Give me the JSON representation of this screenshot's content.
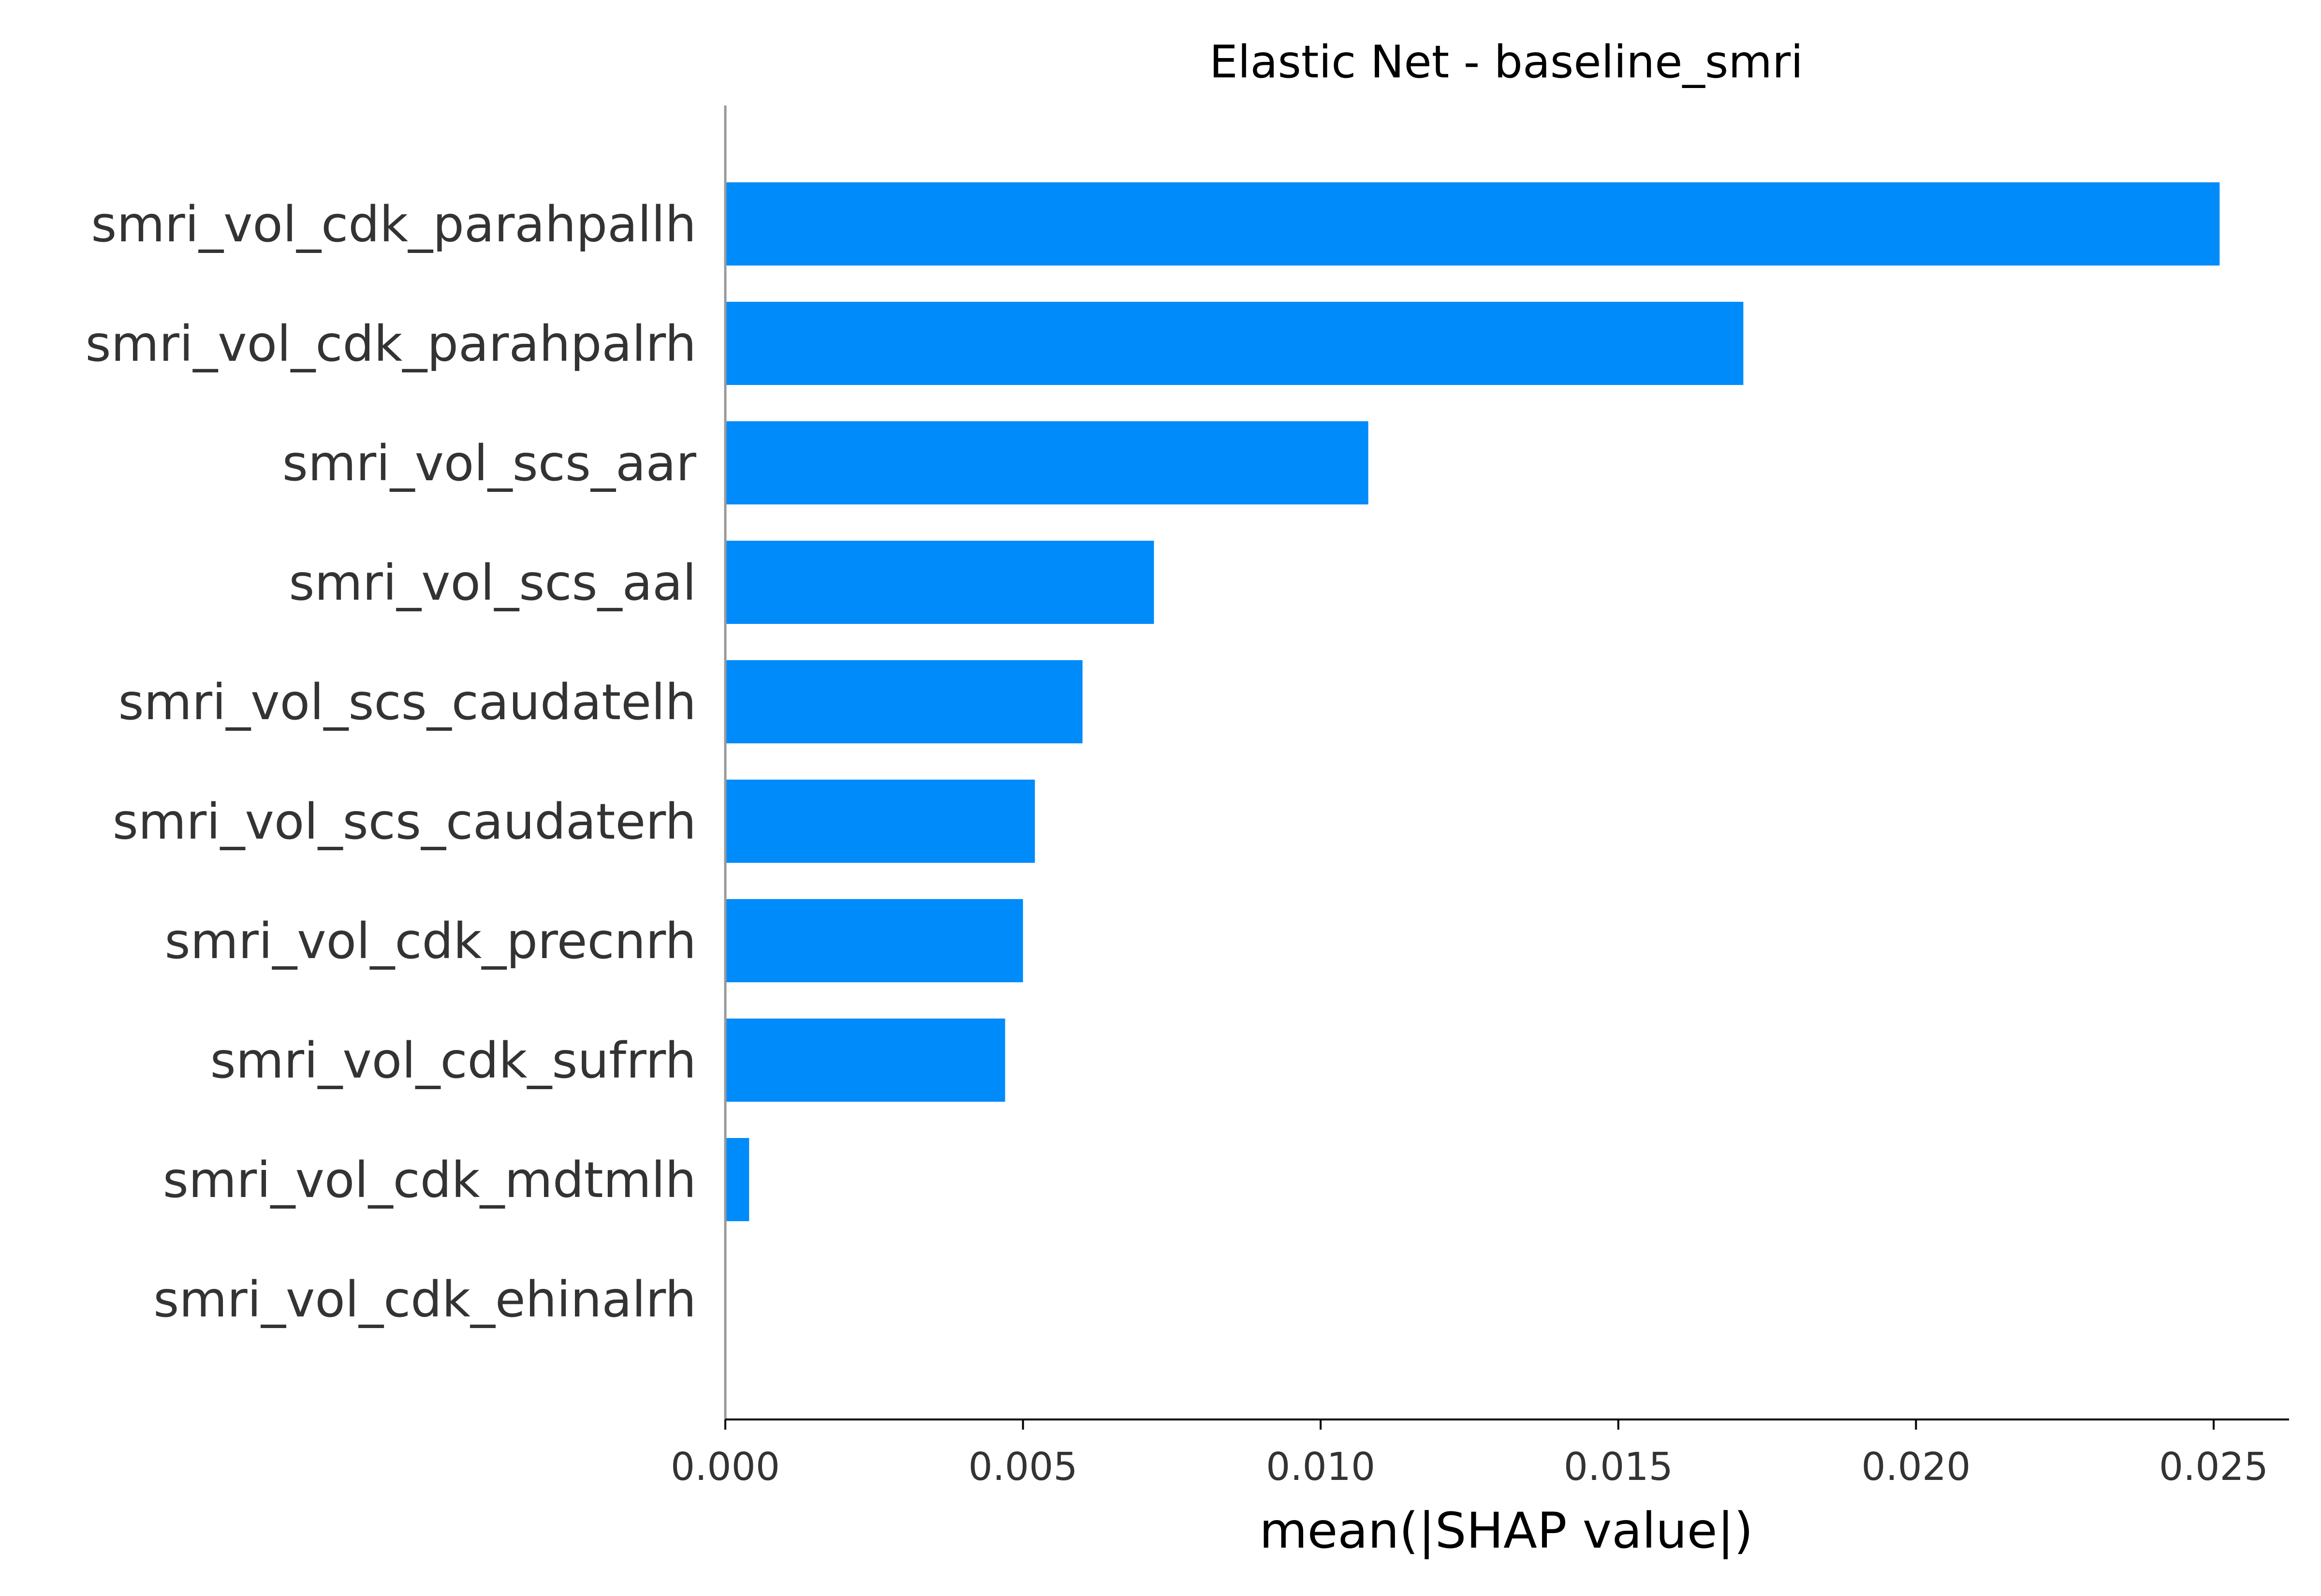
{
  "chart_data": {
    "type": "bar",
    "orientation": "horizontal",
    "title": "Elastic Net - baseline_smri",
    "xlabel": "mean(|SHAP value|)",
    "ylabel": "",
    "categories": [
      "smri_vol_cdk_parahpallh",
      "smri_vol_cdk_parahpalrh",
      "smri_vol_scs_aar",
      "smri_vol_scs_aal",
      "smri_vol_scs_caudatelh",
      "smri_vol_scs_caudaterh",
      "smri_vol_cdk_precnrh",
      "smri_vol_cdk_sufrrh",
      "smri_vol_cdk_mdtmlh",
      "smri_vol_cdk_ehinalrh"
    ],
    "values": [
      0.0251,
      0.0171,
      0.0108,
      0.0072,
      0.006,
      0.0052,
      0.005,
      0.0047,
      0.0004,
      0.0
    ],
    "xlim": [
      0,
      0.0264
    ],
    "xticks": [
      0,
      0.005,
      0.01,
      0.015,
      0.02,
      0.025
    ],
    "xtick_labels": [
      "0.000",
      "0.005",
      "0.010",
      "0.015",
      "0.020",
      "0.025"
    ],
    "bar_color": "#008bfb",
    "grid": false,
    "legend": "none"
  }
}
